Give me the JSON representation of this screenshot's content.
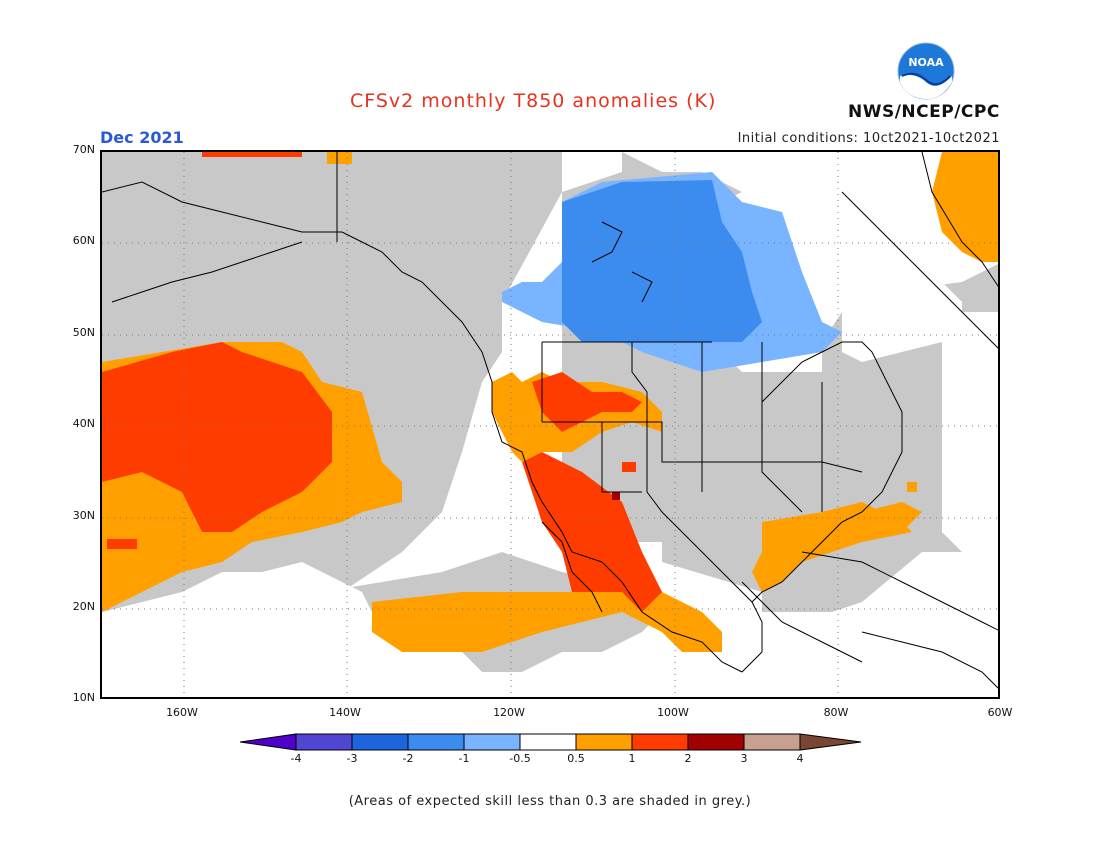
{
  "title": "CFSv2 monthly T850 anomalies (K)",
  "valid_month": "Dec 2021",
  "initial_conditions": "Initial conditions: 10ct2021-10ct2021",
  "agency": "NWS/NCEP/CPC",
  "logo_text": "NOAA",
  "footnote": "(Areas of expected skill less than 0.3 are shaded in grey.)",
  "colors": {
    "skill_grey": "#c8c8c8",
    "land_line": "#000000",
    "anom_pos_0_5_1": "#ffa000",
    "anom_pos_1_2": "#ff3c00",
    "anom_pos_2_3": "#a00000",
    "anom_neg_1_0_5": "#78b4ff",
    "anom_neg_2_1": "#3c8cf0",
    "neutral": "#ffffff"
  },
  "axes": {
    "lat_labels": [
      "70N",
      "60N",
      "50N",
      "40N",
      "30N",
      "20N",
      "10N"
    ],
    "lon_labels": [
      "160W",
      "140W",
      "120W",
      "100W",
      "80W",
      "60W"
    ]
  },
  "colorbar": {
    "labels": [
      "-4",
      "-3",
      "-2",
      "-1",
      "-0.5",
      "0.5",
      "1",
      "2",
      "3",
      "4"
    ],
    "colors": [
      "#5000c8",
      "#5046d2",
      "#1e64dc",
      "#3c8cf0",
      "#78b4ff",
      "#ffffff",
      "#ffa000",
      "#ff3c00",
      "#a00000",
      "#c8a090",
      "#784632"
    ]
  }
}
